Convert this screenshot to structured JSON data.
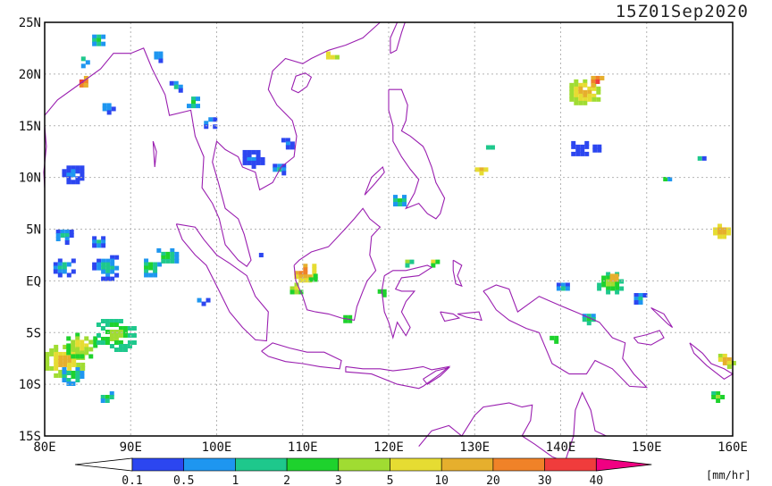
{
  "timestamp": "15Z01Sep2020",
  "unit_label": "[mm/hr]",
  "map": {
    "lon_range": [
      80,
      160
    ],
    "lat_range": [
      -15,
      25
    ],
    "lon_ticks": [
      {
        "value": 80,
        "label": "80E"
      },
      {
        "value": 90,
        "label": "90E"
      },
      {
        "value": 100,
        "label": "100E"
      },
      {
        "value": 110,
        "label": "110E"
      },
      {
        "value": 120,
        "label": "120E"
      },
      {
        "value": 130,
        "label": "130E"
      },
      {
        "value": 140,
        "label": "140E"
      },
      {
        "value": 150,
        "label": "150E"
      },
      {
        "value": 160,
        "label": "160E"
      }
    ],
    "lat_ticks": [
      {
        "value": 25,
        "label": "25N"
      },
      {
        "value": 20,
        "label": "20N"
      },
      {
        "value": 15,
        "label": "15N"
      },
      {
        "value": 10,
        "label": "10N"
      },
      {
        "value": 5,
        "label": "5N"
      },
      {
        "value": 0,
        "label": "EQ"
      },
      {
        "value": -5,
        "label": "5S"
      },
      {
        "value": -10,
        "label": "10S"
      },
      {
        "value": -15,
        "label": "15S"
      }
    ],
    "grid": true,
    "coastline_color": "#9a1fb0"
  },
  "colorbar": {
    "levels": [
      "0.1",
      "0.5",
      "1",
      "2",
      "3",
      "5",
      "10",
      "20",
      "30",
      "40"
    ],
    "colors": [
      "#2c46f0",
      "#1e96f0",
      "#1ec88c",
      "#1ed22d",
      "#a0dc32",
      "#e6dc32",
      "#e6af2d",
      "#f08228",
      "#f03c3c",
      "#f00082"
    ]
  },
  "precip_cells": [
    {
      "lon": 82,
      "lat": -7.5,
      "r": 2.5,
      "level": 6
    },
    {
      "lon": 84,
      "lat": -6,
      "r": 2,
      "level": 5
    },
    {
      "lon": 88,
      "lat": -5,
      "r": 2.5,
      "level": 4
    },
    {
      "lon": 83,
      "lat": -9,
      "r": 1.5,
      "level": 3
    },
    {
      "lon": 82,
      "lat": 1.5,
      "r": 1.5,
      "level": 2
    },
    {
      "lon": 87,
      "lat": 1.5,
      "r": 2,
      "level": 2
    },
    {
      "lon": 92,
      "lat": 1.5,
      "r": 1.5,
      "level": 3
    },
    {
      "lon": 94,
      "lat": 2.5,
      "r": 1.5,
      "level": 3
    },
    {
      "lon": 82,
      "lat": 4.5,
      "r": 1.2,
      "level": 2
    },
    {
      "lon": 86,
      "lat": 4,
      "r": 1,
      "level": 2
    },
    {
      "lon": 83,
      "lat": 10.5,
      "r": 1.5,
      "level": 1
    },
    {
      "lon": 84,
      "lat": 19.5,
      "r": 1,
      "level": 8
    },
    {
      "lon": 84,
      "lat": 21.5,
      "r": 0.8,
      "level": 3
    },
    {
      "lon": 86,
      "lat": 23.5,
      "r": 1,
      "level": 3
    },
    {
      "lon": 87,
      "lat": 17,
      "r": 0.8,
      "level": 2
    },
    {
      "lon": 93,
      "lat": 22,
      "r": 0.8,
      "level": 2
    },
    {
      "lon": 95,
      "lat": 19,
      "r": 1,
      "level": 2
    },
    {
      "lon": 97,
      "lat": 17.5,
      "r": 1,
      "level": 3
    },
    {
      "lon": 99,
      "lat": 15.5,
      "r": 1,
      "level": 2
    },
    {
      "lon": 104,
      "lat": 12,
      "r": 1.5,
      "level": 1
    },
    {
      "lon": 107,
      "lat": 11,
      "r": 1,
      "level": 2
    },
    {
      "lon": 108,
      "lat": 13.5,
      "r": 1,
      "level": 1
    },
    {
      "lon": 110,
      "lat": 1,
      "r": 1.5,
      "level": 7
    },
    {
      "lon": 109,
      "lat": -0.5,
      "r": 1,
      "level": 5
    },
    {
      "lon": 111,
      "lat": 0.5,
      "r": 0.8,
      "level": 4
    },
    {
      "lon": 113,
      "lat": 22,
      "r": 0.8,
      "level": 6
    },
    {
      "lon": 119,
      "lat": -1,
      "r": 0.8,
      "level": 4
    },
    {
      "lon": 121,
      "lat": 8,
      "r": 1,
      "level": 3
    },
    {
      "lon": 122,
      "lat": 2,
      "r": 0.6,
      "level": 4
    },
    {
      "lon": 125,
      "lat": 2,
      "r": 0.6,
      "level": 5
    },
    {
      "lon": 130.5,
      "lat": 11,
      "r": 1,
      "level": 6
    },
    {
      "lon": 131.5,
      "lat": 13,
      "r": 0.7,
      "level": 3
    },
    {
      "lon": 142.5,
      "lat": 18.5,
      "r": 2,
      "level": 6
    },
    {
      "lon": 144,
      "lat": 19.5,
      "r": 1,
      "level": 8
    },
    {
      "lon": 142,
      "lat": 13,
      "r": 1.3,
      "level": 0
    },
    {
      "lon": 144,
      "lat": 13,
      "r": 0.8,
      "level": 1
    },
    {
      "lon": 145.5,
      "lat": 0,
      "r": 1.8,
      "level": 4
    },
    {
      "lon": 146,
      "lat": 0.5,
      "r": 0.8,
      "level": 7
    },
    {
      "lon": 149,
      "lat": -1.5,
      "r": 1,
      "level": 2
    },
    {
      "lon": 140,
      "lat": -0.5,
      "r": 1,
      "level": 2
    },
    {
      "lon": 143,
      "lat": -3.5,
      "r": 1,
      "level": 3
    },
    {
      "lon": 139,
      "lat": -5.5,
      "r": 0.8,
      "level": 4
    },
    {
      "lon": 158.5,
      "lat": 5,
      "r": 1.3,
      "level": 6
    },
    {
      "lon": 159,
      "lat": -7.5,
      "r": 1.2,
      "level": 6
    },
    {
      "lon": 158,
      "lat": -11,
      "r": 1,
      "level": 4
    },
    {
      "lon": 156,
      "lat": 12,
      "r": 0.6,
      "level": 2
    },
    {
      "lon": 152,
      "lat": 10,
      "r": 0.6,
      "level": 3
    },
    {
      "lon": 87,
      "lat": -11,
      "r": 1,
      "level": 3
    },
    {
      "lon": 98,
      "lat": -1.5,
      "r": 0.8,
      "level": 2
    },
    {
      "lon": 105,
      "lat": 3,
      "r": 0.6,
      "level": 2
    },
    {
      "lon": 115,
      "lat": -3.5,
      "r": 0.8,
      "level": 4
    }
  ]
}
